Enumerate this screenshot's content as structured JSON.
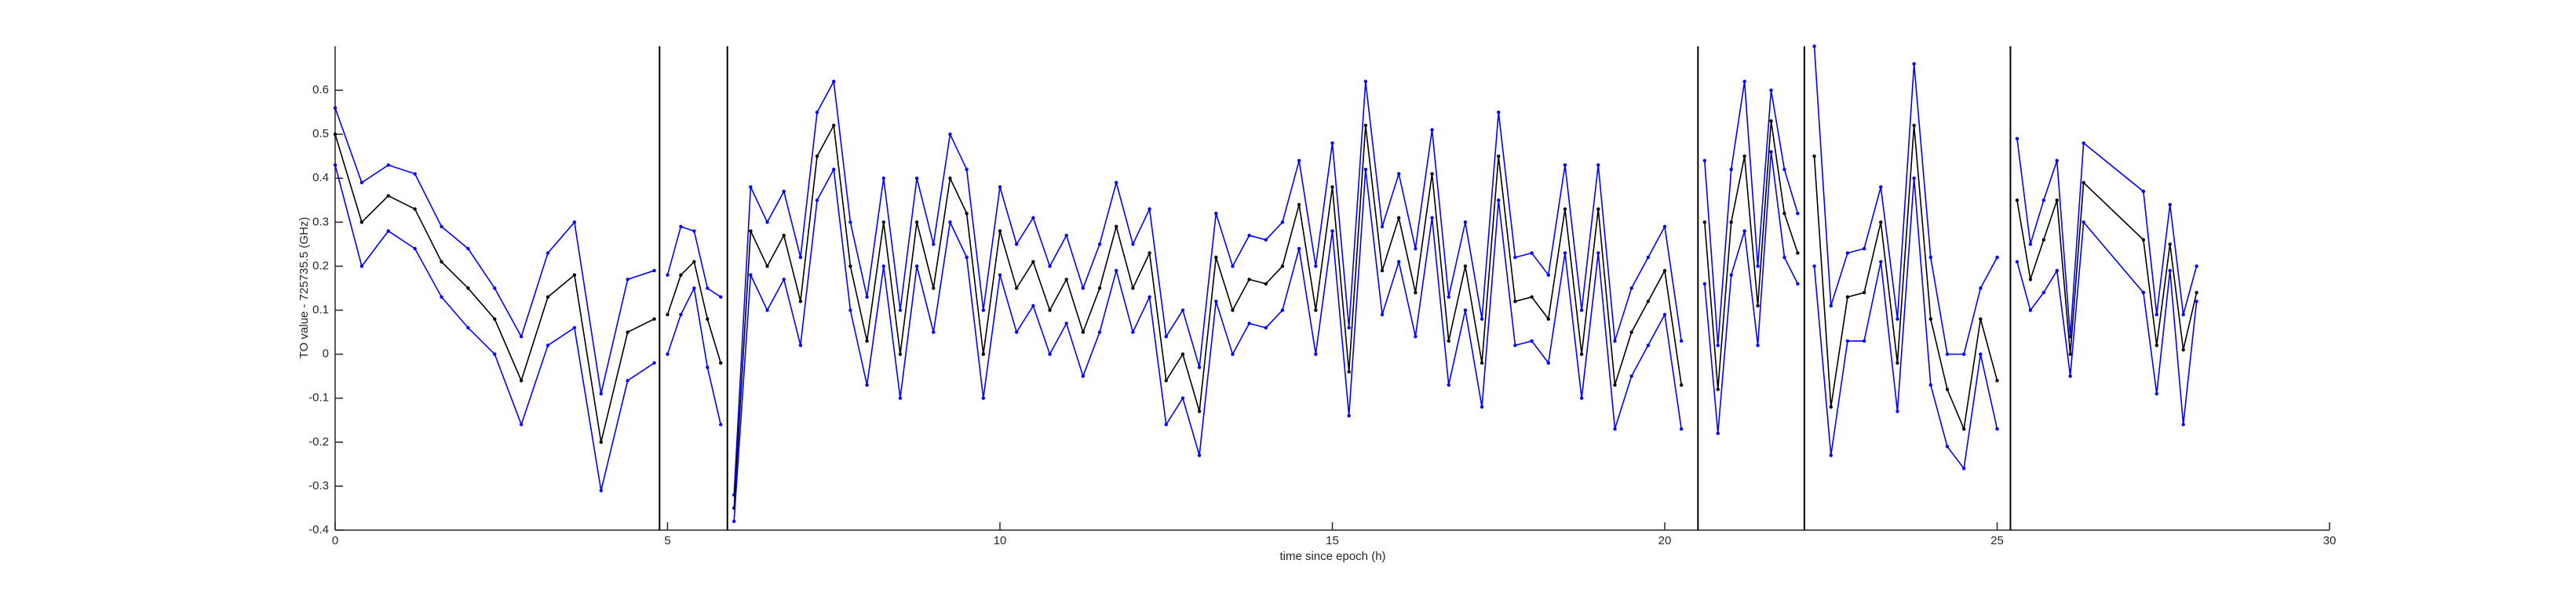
{
  "chart_data": {
    "type": "line",
    "xlabel": "time since epoch (h)",
    "ylabel": "TO value - 725735.5 (GHz)",
    "xlim": [
      0,
      30
    ],
    "ylim": [
      -0.4,
      0.7
    ],
    "xticks": [
      0,
      5,
      10,
      15,
      20,
      25,
      30
    ],
    "yticks": [
      -0.4,
      -0.3,
      -0.2,
      -0.1,
      0,
      0.1,
      0.2,
      0.3,
      0.4,
      0.5,
      0.6
    ],
    "vlines": [
      4.88,
      5.9,
      20.5,
      22.1,
      25.2
    ],
    "vline_color": "#000000",
    "x": [
      0,
      0.4,
      0.8,
      1.2,
      1.6,
      2,
      2.4,
      2.8,
      3.2,
      3.6,
      4,
      4.4,
      4.8,
      4.88,
      5,
      5.2,
      5.4,
      5.6,
      5.8,
      5.9,
      6,
      6.25,
      6.5,
      6.75,
      7,
      7.25,
      7.5,
      7.75,
      8,
      8.25,
      8.5,
      8.75,
      9,
      9.25,
      9.5,
      9.75,
      10,
      10.25,
      10.5,
      10.75,
      11,
      11.25,
      11.5,
      11.75,
      12,
      12.25,
      12.5,
      12.75,
      13,
      13.25,
      13.5,
      13.75,
      14,
      14.25,
      14.5,
      14.75,
      15,
      15.25,
      15.5,
      15.75,
      16,
      16.25,
      16.5,
      16.75,
      17,
      17.25,
      17.5,
      17.75,
      18,
      18.25,
      18.5,
      18.75,
      19,
      19.25,
      19.5,
      19.75,
      20,
      20.25,
      20.5,
      20.6,
      20.8,
      21,
      21.2,
      21.4,
      21.6,
      21.8,
      22,
      22.1,
      22.25,
      22.5,
      22.75,
      23,
      23.25,
      23.5,
      23.75,
      24,
      24.25,
      24.5,
      24.75,
      25,
      25.2,
      25.3,
      25.5,
      25.7,
      25.9,
      26.1,
      26.3,
      27.2,
      27.4,
      27.6,
      27.8,
      28
    ],
    "series": [
      {
        "color": "#0000ff",
        "values": [
          0.56,
          0.39,
          0.43,
          0.41,
          0.29,
          0.24,
          0.15,
          0.04,
          0.23,
          0.3,
          -0.09,
          0.17,
          0.19,
          null,
          0.18,
          0.29,
          0.28,
          0.15,
          0.13,
          null,
          -0.32,
          0.38,
          0.3,
          0.37,
          0.22,
          0.55,
          0.62,
          0.3,
          0.13,
          0.4,
          0.1,
          0.4,
          0.25,
          0.5,
          0.42,
          0.1,
          0.38,
          0.25,
          0.31,
          0.2,
          0.27,
          0.15,
          0.25,
          0.39,
          0.25,
          0.33,
          0.04,
          0.1,
          -0.03,
          0.32,
          0.2,
          0.27,
          0.26,
          0.3,
          0.44,
          0.2,
          0.48,
          0.06,
          0.62,
          0.29,
          0.41,
          0.24,
          0.51,
          0.13,
          0.3,
          0.08,
          0.55,
          0.22,
          0.23,
          0.18,
          0.43,
          0.1,
          0.43,
          0.03,
          0.15,
          0.22,
          0.29,
          0.03,
          null,
          0.44,
          0.02,
          0.42,
          0.62,
          0.2,
          0.6,
          0.42,
          0.32,
          null,
          0.7,
          0.11,
          0.23,
          0.24,
          0.38,
          0.08,
          0.66,
          0.22,
          0.0,
          0.0,
          0.15,
          0.22,
          null,
          0.49,
          0.25,
          0.35,
          0.44,
          0.04,
          0.48,
          0.37,
          0.09,
          0.34,
          0.09,
          0.2
        ]
      },
      {
        "color": "#000000",
        "values": [
          0.5,
          0.3,
          0.36,
          0.33,
          0.21,
          0.15,
          0.08,
          -0.06,
          0.13,
          0.18,
          -0.2,
          0.05,
          0.08,
          null,
          0.09,
          0.18,
          0.21,
          0.08,
          -0.02,
          null,
          -0.35,
          0.28,
          0.2,
          0.27,
          0.12,
          0.45,
          0.52,
          0.2,
          0.03,
          0.3,
          0.0,
          0.3,
          0.15,
          0.4,
          0.32,
          0.0,
          0.28,
          0.15,
          0.21,
          0.1,
          0.17,
          0.05,
          0.15,
          0.29,
          0.15,
          0.23,
          -0.06,
          0.0,
          -0.13,
          0.22,
          0.1,
          0.17,
          0.16,
          0.2,
          0.34,
          0.1,
          0.38,
          -0.04,
          0.52,
          0.19,
          0.31,
          0.14,
          0.41,
          0.03,
          0.2,
          -0.02,
          0.45,
          0.12,
          0.13,
          0.08,
          0.33,
          0.0,
          0.33,
          -0.07,
          0.05,
          0.12,
          0.19,
          -0.07,
          null,
          0.3,
          -0.08,
          0.3,
          0.45,
          0.11,
          0.53,
          0.32,
          0.23,
          null,
          0.45,
          -0.12,
          0.13,
          0.14,
          0.3,
          -0.02,
          0.52,
          0.08,
          -0.08,
          -0.17,
          0.08,
          -0.06,
          null,
          0.35,
          0.17,
          0.26,
          0.35,
          0.0,
          0.39,
          0.26,
          0.02,
          0.25,
          0.01,
          0.14
        ]
      },
      {
        "color": "#0000ff",
        "values": [
          0.43,
          0.2,
          0.28,
          0.24,
          0.13,
          0.06,
          0.0,
          -0.16,
          0.02,
          0.06,
          -0.31,
          -0.06,
          -0.02,
          null,
          0.0,
          0.09,
          0.15,
          -0.03,
          -0.16,
          null,
          -0.38,
          0.18,
          0.1,
          0.17,
          0.02,
          0.35,
          0.42,
          0.1,
          -0.07,
          0.2,
          -0.1,
          0.2,
          0.05,
          0.3,
          0.22,
          -0.1,
          0.18,
          0.05,
          0.11,
          0.0,
          0.07,
          -0.05,
          0.05,
          0.19,
          0.05,
          0.13,
          -0.16,
          -0.1,
          -0.23,
          0.12,
          0.0,
          0.07,
          0.06,
          0.1,
          0.24,
          0.0,
          0.28,
          -0.14,
          0.42,
          0.09,
          0.21,
          0.04,
          0.31,
          -0.07,
          0.1,
          -0.12,
          0.35,
          0.02,
          0.03,
          -0.02,
          0.23,
          -0.1,
          0.23,
          -0.17,
          -0.05,
          0.02,
          0.09,
          -0.17,
          null,
          0.16,
          -0.18,
          0.18,
          0.28,
          0.02,
          0.46,
          0.22,
          0.16,
          null,
          0.2,
          -0.23,
          0.03,
          0.03,
          0.21,
          -0.13,
          0.4,
          -0.07,
          -0.21,
          -0.26,
          0.0,
          -0.17,
          null,
          0.21,
          0.1,
          0.14,
          0.19,
          -0.05,
          0.3,
          0.14,
          -0.09,
          0.19,
          -0.16,
          0.12
        ]
      }
    ]
  }
}
